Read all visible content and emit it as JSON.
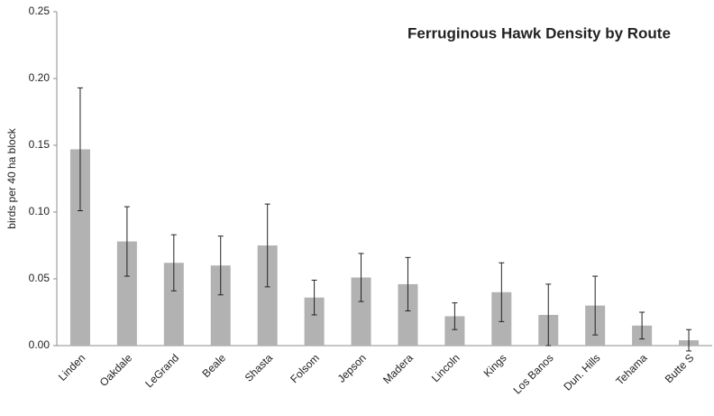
{
  "chart_data": {
    "type": "bar",
    "title": "Ferruginous Hawk Density by Route",
    "y_label": "birds per 40 ha block",
    "categories": [
      "Linden",
      "Oakdale",
      "LeGrand",
      "Beale",
      "Shasta",
      "Folsom",
      "Jepson",
      "Madera",
      "Lincoln",
      "Kings",
      "Los Banos",
      "Dun. Hills",
      "Tehama",
      "Butte S"
    ],
    "values": [
      0.147,
      0.078,
      0.062,
      0.06,
      0.075,
      0.036,
      0.051,
      0.046,
      0.022,
      0.04,
      0.023,
      0.03,
      0.015,
      0.004
    ],
    "errors": [
      0.046,
      0.026,
      0.021,
      0.022,
      0.031,
      0.013,
      0.018,
      0.02,
      0.01,
      0.022,
      0.023,
      0.022,
      0.01,
      0.008
    ],
    "color": "#b2b2b2",
    "ylim": [
      0,
      0.25
    ],
    "yticks": [
      {
        "value": 0,
        "label": "0.00"
      },
      {
        "value": 0.05,
        "label": "0.05"
      },
      {
        "value": 0.1,
        "label": "0.10"
      },
      {
        "value": 0.15,
        "label": "0.15"
      },
      {
        "value": 0.2,
        "label": "0.20"
      },
      {
        "value": 0.25,
        "label": "0.25"
      }
    ],
    "grid": false
  }
}
